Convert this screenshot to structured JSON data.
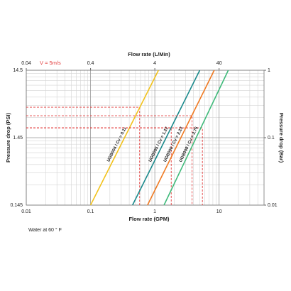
{
  "chart_data": {
    "type": "line",
    "x_label": "Flow rate (GPM)",
    "x2_label": "Flow rate (L/Min)",
    "y_label": "Pressure drop (PSI)",
    "y2_label": "Pressure drop (Bar)",
    "annotation": "V = 5m/s",
    "note": "Water at 60 ° F",
    "log_x": true,
    "log_y": true,
    "grid": true,
    "minor_grid": true,
    "xlim": [
      0.01,
      50
    ],
    "xticks": [
      0.01,
      0.1,
      1,
      10
    ],
    "x2lim": [
      0.04,
      200
    ],
    "x2ticks": [
      0.04,
      0.4,
      4,
      40
    ],
    "ylim": [
      0.145,
      14.5
    ],
    "yticks": [
      0.145,
      1.45,
      14.5
    ],
    "y2lim": [
      0.01,
      1
    ],
    "y2ticks": [
      0.01,
      0.1,
      1
    ],
    "marker_color": "#e23b3b",
    "series": [
      {
        "name": "UGB004 / Cv = 0.11",
        "color": "#f2c21b",
        "x": [
          0.1,
          1.14
        ],
        "values": [
          0.145,
          14.5
        ],
        "v_point": [
          0.58,
          4.11
        ]
      },
      {
        "name": "UGB005 / Cv = 1.22",
        "color": "#1b8a8c",
        "x": [
          0.45,
          5.0
        ],
        "values": [
          0.145,
          14.5
        ],
        "v_point": [
          1.8,
          2.03
        ]
      },
      {
        "name": "UGB006 / Cv = 2.23",
        "color": "#f07a22",
        "x": [
          0.77,
          8.4
        ],
        "values": [
          0.145,
          14.5
        ],
        "v_point": [
          3.8,
          3.07
        ]
      },
      {
        "name": "UGB008 / Cv = 3.75",
        "color": "#3fba7a",
        "x": [
          1.39,
          13.9
        ],
        "values": [
          0.145,
          14.5
        ],
        "v_point": [
          5.5,
          2.03
        ]
      }
    ]
  }
}
